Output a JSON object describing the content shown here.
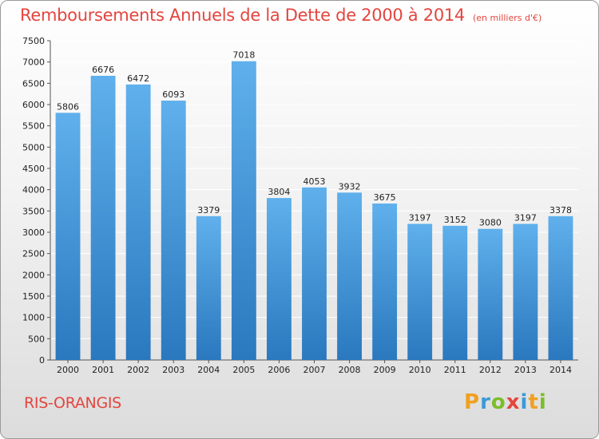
{
  "header": {
    "title": "Remboursements Annuels de la Dette de 2000 à 2014",
    "unit": "(en milliers d'€)"
  },
  "footer": {
    "city": "RIS-ORANGIS",
    "brand_letters": [
      "P",
      "r",
      "o",
      "x",
      "i",
      "t",
      "i"
    ]
  },
  "colors": {
    "title": "#e4453f",
    "bar_top": "#5fb0ec",
    "bar_bottom": "#2a78be",
    "grid": "#ffffff",
    "brand_letters": [
      "#f0a020",
      "#3a9ad9",
      "#7cbd2a",
      "#e4453f",
      "#3a9ad9",
      "#f0a020",
      "#7cbd2a"
    ]
  },
  "chart_data": {
    "type": "bar",
    "categories": [
      "2000",
      "2001",
      "2002",
      "2003",
      "2004",
      "2005",
      "2006",
      "2007",
      "2008",
      "2009",
      "2010",
      "2011",
      "2012",
      "2013",
      "2014"
    ],
    "values": [
      5806,
      6676,
      6472,
      6093,
      3379,
      7018,
      3804,
      4053,
      3932,
      3675,
      3197,
      3152,
      3080,
      3197,
      3378
    ],
    "ylim": [
      0,
      7500
    ],
    "yticks": [
      "0",
      "500",
      "1000",
      "1500",
      "2000",
      "2500",
      "3000",
      "3500",
      "4000",
      "4500",
      "5000",
      "5500",
      "6000",
      "6500",
      "7000",
      "7500"
    ],
    "grid": true
  }
}
